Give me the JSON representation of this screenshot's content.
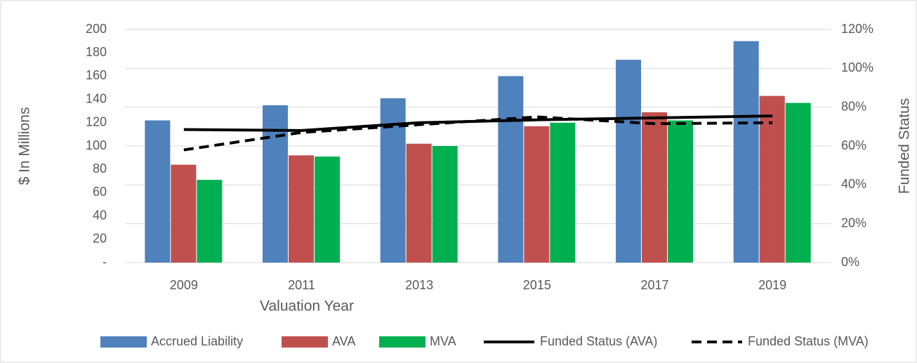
{
  "chart_data": {
    "type": "bar",
    "x_label": "Valuation Year",
    "y_label": "$ In Millions",
    "y2_label": "Funded Status",
    "categories": [
      "2009",
      "2011",
      "2013",
      "2015",
      "2017",
      "2019"
    ],
    "series": [
      {
        "name": "Accrued Liability",
        "type": "bar",
        "color": "#4f81bd",
        "values": [
          122,
          135,
          141,
          160,
          174,
          190
        ]
      },
      {
        "name": "AVA",
        "type": "bar",
        "color": "#c0504d",
        "values": [
          84,
          92,
          102,
          117,
          129,
          143
        ]
      },
      {
        "name": "MVA",
        "type": "bar",
        "color": "#00b050",
        "values": [
          71,
          91,
          100,
          120,
          122,
          137
        ]
      },
      {
        "name": "Funded Status (AVA)",
        "type": "line",
        "axis": "y2",
        "color": "#000000",
        "line_style": "solid",
        "values": [
          68.5,
          68,
          72,
          73.5,
          74.5,
          75.5
        ]
      },
      {
        "name": "Funded Status (MVA)",
        "type": "line",
        "axis": "y2",
        "color": "#000000",
        "line_style": "dashed",
        "values": [
          58,
          67,
          71,
          75,
          71.5,
          72
        ]
      }
    ],
    "ylim": [
      0,
      200
    ],
    "yticks": [
      {
        "value": 0,
        "label": "-"
      },
      20,
      40,
      60,
      80,
      100,
      120,
      140,
      160,
      180,
      200
    ],
    "y2lim": [
      0,
      120
    ],
    "y2ticks": [
      {
        "value": 0,
        "label": "0%"
      },
      {
        "value": 20,
        "label": "20%"
      },
      {
        "value": 40,
        "label": "40%"
      },
      {
        "value": 60,
        "label": "60%"
      },
      {
        "value": 80,
        "label": "80%"
      },
      {
        "value": 100,
        "label": "100%"
      },
      {
        "value": 120,
        "label": "120%"
      }
    ],
    "grid": "y2",
    "legend": "bottom"
  }
}
